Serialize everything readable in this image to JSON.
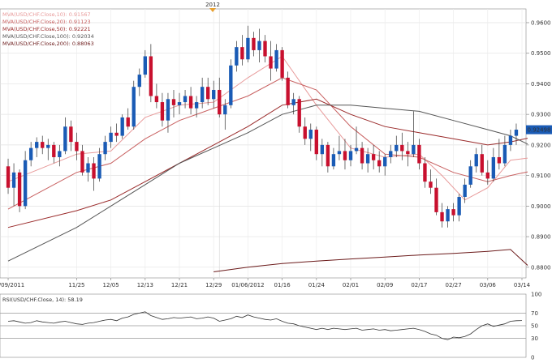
{
  "chart_data": [
    {
      "type": "candlestick",
      "year_marker": "2012",
      "legend": [
        {
          "text": "MVA(USD/CHF.Close,10): 0.91567",
          "color": "#e89a9a"
        },
        {
          "text": "MVA(USD/CHF.Close,20): 0.91123",
          "color": "#c86060"
        },
        {
          "text": "MVA(USD/CHF.Close,50): 0.92221",
          "color": "#9a2a2a"
        },
        {
          "text": "MVA(USD/CHF.Close,100): 0.92034",
          "color": "#555555"
        },
        {
          "text": "MVA(USD/CHF.Close,200): 0.88063",
          "color": "#6b1a1a"
        }
      ],
      "price_ticks": [
        "0.9600",
        "0.9500",
        "0.9400",
        "0.9300",
        "0.9200",
        "0.9100",
        "0.9000",
        "0.8900",
        "0.8800"
      ],
      "price_tick_values": [
        0.96,
        0.95,
        0.94,
        0.93,
        0.92,
        0.91,
        0.9,
        0.89,
        0.88
      ],
      "ylim": [
        0.8765,
        0.9645
      ],
      "current_price": "0.92498",
      "current_price_value": 0.92498,
      "x_ticks": [
        {
          "label": "11/09/2011",
          "index": 0
        },
        {
          "label": "11/25",
          "index": 12
        },
        {
          "label": "12/05",
          "index": 18
        },
        {
          "label": "12/13",
          "index": 24
        },
        {
          "label": "12/21",
          "index": 30
        },
        {
          "label": "12/29",
          "index": 36
        },
        {
          "label": "01/06/2012",
          "index": 42
        },
        {
          "label": "01/16",
          "index": 48
        },
        {
          "label": "01/24",
          "index": 54
        },
        {
          "label": "02/01",
          "index": 60
        },
        {
          "label": "02/09",
          "index": 66
        },
        {
          "label": "02/17",
          "index": 72
        },
        {
          "label": "02/27",
          "index": 78
        },
        {
          "label": "03/06",
          "index": 84
        },
        {
          "label": "03/14",
          "index": 90
        }
      ],
      "year_marker_index": 37,
      "candles": [
        [
          0.913,
          0.9155,
          0.904,
          0.906
        ],
        [
          0.906,
          0.914,
          0.9,
          0.911
        ],
        [
          0.911,
          0.912,
          0.898,
          0.9
        ],
        [
          0.9,
          0.918,
          0.899,
          0.915
        ],
        [
          0.915,
          0.921,
          0.913,
          0.919
        ],
        [
          0.919,
          0.9225,
          0.916,
          0.921
        ],
        [
          0.921,
          0.923,
          0.917,
          0.919
        ],
        [
          0.919,
          0.922,
          0.915,
          0.92
        ],
        [
          0.92,
          0.921,
          0.914,
          0.916
        ],
        [
          0.916,
          0.92,
          0.913,
          0.918
        ],
        [
          0.918,
          0.929,
          0.917,
          0.926
        ],
        [
          0.926,
          0.928,
          0.918,
          0.921
        ],
        [
          0.921,
          0.924,
          0.915,
          0.918
        ],
        [
          0.918,
          0.92,
          0.91,
          0.911
        ],
        [
          0.911,
          0.916,
          0.908,
          0.914
        ],
        [
          0.914,
          0.916,
          0.905,
          0.909
        ],
        [
          0.909,
          0.919,
          0.908,
          0.917
        ],
        [
          0.917,
          0.923,
          0.915,
          0.921
        ],
        [
          0.921,
          0.926,
          0.919,
          0.924
        ],
        [
          0.924,
          0.927,
          0.921,
          0.923
        ],
        [
          0.923,
          0.93,
          0.922,
          0.929
        ],
        [
          0.929,
          0.932,
          0.925,
          0.926
        ],
        [
          0.926,
          0.941,
          0.925,
          0.939
        ],
        [
          0.939,
          0.945,
          0.936,
          0.943
        ],
        [
          0.943,
          0.951,
          0.942,
          0.949
        ],
        [
          0.949,
          0.953,
          0.934,
          0.936
        ],
        [
          0.936,
          0.94,
          0.932,
          0.934
        ],
        [
          0.934,
          0.937,
          0.926,
          0.928
        ],
        [
          0.928,
          0.937,
          0.924,
          0.935
        ],
        [
          0.935,
          0.938,
          0.929,
          0.933
        ],
        [
          0.933,
          0.937,
          0.93,
          0.934
        ],
        [
          0.934,
          0.938,
          0.932,
          0.936
        ],
        [
          0.936,
          0.939,
          0.93,
          0.932
        ],
        [
          0.932,
          0.936,
          0.929,
          0.934
        ],
        [
          0.934,
          0.942,
          0.932,
          0.939
        ],
        [
          0.939,
          0.942,
          0.933,
          0.935
        ],
        [
          0.935,
          0.941,
          0.932,
          0.938
        ],
        [
          0.938,
          0.942,
          0.929,
          0.93
        ],
        [
          0.93,
          0.935,
          0.925,
          0.933
        ],
        [
          0.933,
          0.948,
          0.932,
          0.946
        ],
        [
          0.946,
          0.954,
          0.944,
          0.952
        ],
        [
          0.952,
          0.956,
          0.946,
          0.948
        ],
        [
          0.948,
          0.959,
          0.947,
          0.955
        ],
        [
          0.955,
          0.957,
          0.949,
          0.951
        ],
        [
          0.951,
          0.958,
          0.947,
          0.954
        ],
        [
          0.954,
          0.956,
          0.947,
          0.949
        ],
        [
          0.949,
          0.954,
          0.941,
          0.945
        ],
        [
          0.945,
          0.953,
          0.944,
          0.951
        ],
        [
          0.951,
          0.952,
          0.941,
          0.942
        ],
        [
          0.942,
          0.944,
          0.932,
          0.933
        ],
        [
          0.933,
          0.937,
          0.93,
          0.935
        ],
        [
          0.935,
          0.936,
          0.924,
          0.926
        ],
        [
          0.926,
          0.929,
          0.92,
          0.922
        ],
        [
          0.922,
          0.927,
          0.918,
          0.925
        ],
        [
          0.925,
          0.926,
          0.915,
          0.917
        ],
        [
          0.917,
          0.922,
          0.913,
          0.92
        ],
        [
          0.92,
          0.921,
          0.911,
          0.913
        ],
        [
          0.913,
          0.919,
          0.912,
          0.917
        ],
        [
          0.917,
          0.923,
          0.915,
          0.918
        ],
        [
          0.918,
          0.922,
          0.912,
          0.915
        ],
        [
          0.915,
          0.92,
          0.913,
          0.918
        ],
        [
          0.918,
          0.926,
          0.917,
          0.919
        ],
        [
          0.919,
          0.921,
          0.912,
          0.914
        ],
        [
          0.914,
          0.919,
          0.911,
          0.917
        ],
        [
          0.917,
          0.92,
          0.912,
          0.915
        ],
        [
          0.915,
          0.918,
          0.911,
          0.913
        ],
        [
          0.913,
          0.917,
          0.91,
          0.916
        ],
        [
          0.916,
          0.92,
          0.914,
          0.918
        ],
        [
          0.918,
          0.923,
          0.916,
          0.92
        ],
        [
          0.92,
          0.924,
          0.915,
          0.918
        ],
        [
          0.918,
          0.921,
          0.913,
          0.917
        ],
        [
          0.917,
          0.931,
          0.916,
          0.92
        ],
        [
          0.92,
          0.922,
          0.912,
          0.914
        ],
        [
          0.914,
          0.916,
          0.906,
          0.908
        ],
        [
          0.908,
          0.912,
          0.904,
          0.906
        ],
        [
          0.906,
          0.909,
          0.897,
          0.898
        ],
        [
          0.898,
          0.901,
          0.893,
          0.895
        ],
        [
          0.895,
          0.9,
          0.893,
          0.899
        ],
        [
          0.899,
          0.901,
          0.895,
          0.897
        ],
        [
          0.897,
          0.904,
          0.895,
          0.903
        ],
        [
          0.903,
          0.909,
          0.901,
          0.907
        ],
        [
          0.907,
          0.915,
          0.906,
          0.913
        ],
        [
          0.913,
          0.919,
          0.911,
          0.917
        ],
        [
          0.917,
          0.92,
          0.91,
          0.911
        ],
        [
          0.911,
          0.915,
          0.907,
          0.909
        ],
        [
          0.909,
          0.919,
          0.908,
          0.916
        ],
        [
          0.916,
          0.922,
          0.912,
          0.914
        ],
        [
          0.914,
          0.923,
          0.913,
          0.92
        ],
        [
          0.92,
          0.925,
          0.918,
          0.923
        ],
        [
          0.923,
          0.927,
          0.92,
          0.925
        ]
      ],
      "moving_averages": [
        {
          "name": "MVA(USD/CHF.Close,10)",
          "color": "#e89a9a",
          "points": [
            [
              0,
              0.908
            ],
            [
              12,
              0.917
            ],
            [
              18,
              0.918
            ],
            [
              24,
              0.929
            ],
            [
              30,
              0.933
            ],
            [
              36,
              0.934
            ],
            [
              42,
              0.942
            ],
            [
              48,
              0.949
            ],
            [
              54,
              0.933
            ],
            [
              60,
              0.919
            ],
            [
              66,
              0.916
            ],
            [
              72,
              0.917
            ],
            [
              76,
              0.91
            ],
            [
              80,
              0.902
            ],
            [
              84,
              0.906
            ],
            [
              88,
              0.915
            ],
            [
              91,
              0.9157
            ]
          ]
        },
        {
          "name": "MVA(USD/CHF.Close,20)",
          "color": "#c86060",
          "points": [
            [
              0,
              0.899
            ],
            [
              12,
              0.911
            ],
            [
              18,
              0.914
            ],
            [
              24,
              0.922
            ],
            [
              30,
              0.928
            ],
            [
              36,
              0.932
            ],
            [
              42,
              0.936
            ],
            [
              48,
              0.942
            ],
            [
              54,
              0.938
            ],
            [
              60,
              0.926
            ],
            [
              66,
              0.917
            ],
            [
              72,
              0.916
            ],
            [
              78,
              0.911
            ],
            [
              84,
              0.908
            ],
            [
              88,
              0.91
            ],
            [
              91,
              0.9112
            ]
          ]
        },
        {
          "name": "MVA(USD/CHF.Close,50)",
          "color": "#9a2a2a",
          "points": [
            [
              0,
              0.893
            ],
            [
              12,
              0.8985
            ],
            [
              18,
              0.902
            ],
            [
              24,
              0.908
            ],
            [
              30,
              0.914
            ],
            [
              36,
              0.92
            ],
            [
              42,
              0.926
            ],
            [
              48,
              0.933
            ],
            [
              54,
              0.935
            ],
            [
              60,
              0.93
            ],
            [
              66,
              0.926
            ],
            [
              72,
              0.924
            ],
            [
              78,
              0.922
            ],
            [
              84,
              0.92
            ],
            [
              88,
              0.921
            ],
            [
              91,
              0.9222
            ]
          ]
        },
        {
          "name": "MVA(USD/CHF.Close,100)",
          "color": "#555555",
          "points": [
            [
              0,
              0.882
            ],
            [
              12,
              0.893
            ],
            [
              18,
              0.9
            ],
            [
              24,
              0.907
            ],
            [
              30,
              0.914
            ],
            [
              36,
              0.919
            ],
            [
              42,
              0.924
            ],
            [
              48,
              0.93
            ],
            [
              54,
              0.933
            ],
            [
              60,
              0.933
            ],
            [
              66,
              0.932
            ],
            [
              72,
              0.931
            ],
            [
              78,
              0.928
            ],
            [
              84,
              0.925
            ],
            [
              88,
              0.923
            ],
            [
              91,
              0.9203
            ]
          ]
        },
        {
          "name": "MVA(USD/CHF.Close,200)",
          "color": "#6b1a1a",
          "points": [
            [
              36,
              0.8785
            ],
            [
              42,
              0.88
            ],
            [
              48,
              0.8812
            ],
            [
              54,
              0.882
            ],
            [
              60,
              0.8827
            ],
            [
              66,
              0.8833
            ],
            [
              72,
              0.884
            ],
            [
              78,
              0.8845
            ],
            [
              84,
              0.8852
            ],
            [
              88,
              0.8858
            ],
            [
              91,
              0.8806
            ]
          ]
        }
      ]
    },
    {
      "type": "line",
      "legend_text": "RSI(USD/CHF.Close, 14): 58.19",
      "y_ticks": [
        "100",
        "70",
        "50",
        "30",
        "0"
      ],
      "y_tick_values": [
        100,
        70,
        50,
        30,
        0
      ],
      "ylim": [
        0,
        100
      ],
      "series": [
        {
          "name": "RSI(USD/CHF.Close, 14)",
          "values": [
            57,
            58,
            56,
            54,
            55,
            58,
            56,
            55,
            54,
            56,
            57,
            55,
            53,
            52,
            54,
            55,
            57,
            59,
            60,
            58,
            62,
            64,
            68,
            70,
            72,
            66,
            63,
            60,
            61,
            63,
            62,
            63,
            64,
            61,
            62,
            64,
            62,
            57,
            59,
            61,
            65,
            63,
            67,
            64,
            62,
            60,
            59,
            61,
            57,
            54,
            53,
            50,
            48,
            46,
            44,
            46,
            44,
            46,
            45,
            44,
            45,
            46,
            43,
            44,
            45,
            43,
            44,
            42,
            43,
            44,
            45,
            46,
            44,
            41,
            37,
            35,
            30,
            28,
            32,
            31,
            33,
            37,
            44,
            50,
            53,
            49,
            51,
            53,
            57,
            58,
            58.19
          ]
        }
      ]
    }
  ]
}
